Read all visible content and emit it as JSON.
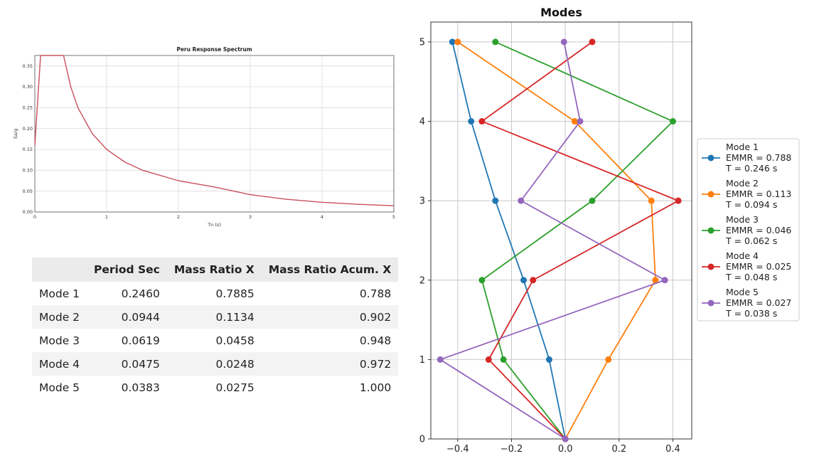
{
  "chart_data": [
    {
      "type": "line",
      "title": "Peru Response Spectrum",
      "xlabel": "Tn (s)",
      "ylabel": "Sa/g",
      "xlim": [
        0,
        5
      ],
      "ylim": [
        0,
        0.375
      ],
      "grid": true,
      "x_ticks": [
        "0",
        "1",
        "2",
        "3",
        "4",
        "5"
      ],
      "y_ticks": [
        "0.00",
        "0.05",
        "0.10",
        "0.15",
        "0.20",
        "0.25",
        "0.30",
        "0.35"
      ],
      "series": [
        {
          "color": "#c8505a",
          "x": [
            0,
            0.08,
            0.4,
            0.5,
            0.6,
            0.8,
            1.0,
            1.25,
            1.5,
            2.0,
            2.5,
            3.0,
            3.5,
            4.0,
            4.5,
            5.0
          ],
          "y": [
            0.16,
            0.375,
            0.375,
            0.3,
            0.25,
            0.1875,
            0.15,
            0.12,
            0.1,
            0.075,
            0.06,
            0.0417,
            0.0306,
            0.0234,
            0.0185,
            0.015
          ]
        }
      ]
    },
    {
      "type": "line",
      "title": "Modes",
      "xlim": [
        -0.5,
        0.47
      ],
      "ylim": [
        0,
        5.25
      ],
      "grid": true,
      "x_ticks": [
        "−0.4",
        "−0.2",
        "0.0",
        "0.2",
        "0.4"
      ],
      "y_ticks": [
        "0",
        "1",
        "2",
        "3",
        "4",
        "5"
      ],
      "legend_position": "right",
      "x_levels": [
        0,
        1,
        2,
        3,
        4,
        5
      ],
      "series": [
        {
          "legend": [
            "Mode 1",
            "EMMR = 0.788",
            "T = 0.246 s"
          ],
          "color": "#1f77b4",
          "values": [
            0,
            -0.06,
            -0.155,
            -0.26,
            -0.35,
            -0.42
          ]
        },
        {
          "legend": [
            "Mode 2",
            "EMMR = 0.113",
            "T = 0.094 s"
          ],
          "color": "#ff7f0e",
          "values": [
            0,
            0.16,
            0.335,
            0.32,
            0.035,
            -0.4
          ]
        },
        {
          "legend": [
            "Mode 3",
            "EMMR = 0.046",
            "T = 0.062 s"
          ],
          "color": "#2ca02c",
          "values": [
            0,
            -0.23,
            -0.31,
            0.1,
            0.4,
            -0.26
          ]
        },
        {
          "legend": [
            "Mode 4",
            "EMMR = 0.025",
            "T = 0.048 s"
          ],
          "color": "#d62728",
          "values": [
            0,
            -0.285,
            -0.12,
            0.42,
            -0.31,
            0.1
          ]
        },
        {
          "legend": [
            "Mode 5",
            "EMMR = 0.027",
            "T = 0.038 s"
          ],
          "color": "#9467bd",
          "values": [
            0,
            -0.465,
            0.37,
            -0.165,
            0.055,
            -0.005
          ]
        }
      ]
    }
  ],
  "table": {
    "headers": [
      "",
      "Period Sec",
      "Mass Ratio X",
      "Mass Ratio Acum. X"
    ],
    "rows": [
      [
        "Mode 1",
        "0.2460",
        "0.7885",
        "0.788"
      ],
      [
        "Mode 2",
        "0.0944",
        "0.1134",
        "0.902"
      ],
      [
        "Mode 3",
        "0.0619",
        "0.0458",
        "0.948"
      ],
      [
        "Mode 4",
        "0.0475",
        "0.0248",
        "0.972"
      ],
      [
        "Mode 5",
        "0.0383",
        "0.0275",
        "1.000"
      ]
    ]
  }
}
